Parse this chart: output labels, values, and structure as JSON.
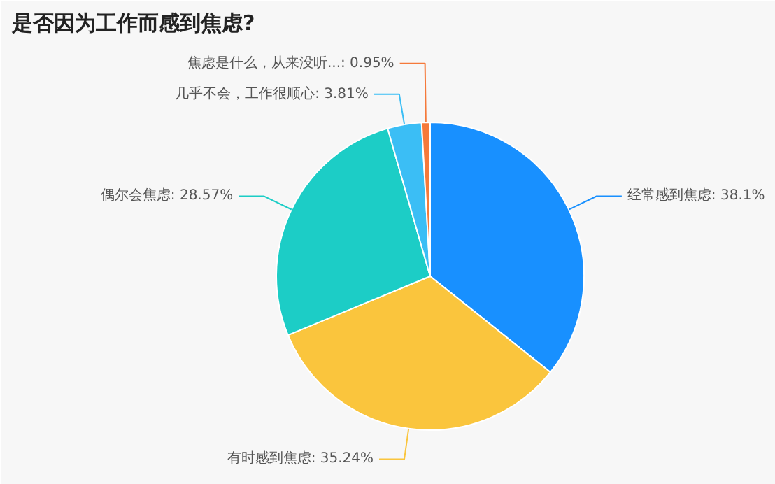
{
  "chart_data": {
    "type": "pie",
    "title": "是否因为工作而感到焦虑?",
    "categories": [
      "经常感到焦虑",
      "有时感到焦虑",
      "偶尔会焦虑",
      "几乎不会，工作很顺心",
      "焦虑是什么，从来没听..."
    ],
    "values": [
      38.1,
      35.24,
      28.57,
      3.81,
      0.95
    ],
    "value_labels": [
      "38.1%",
      "35.24%",
      "28.57%",
      "3.81%",
      "0.95%"
    ],
    "colors": [
      "#1890ff",
      "#fac53d",
      "#1ccdc6",
      "#3bbef5",
      "#f5793a"
    ]
  }
}
